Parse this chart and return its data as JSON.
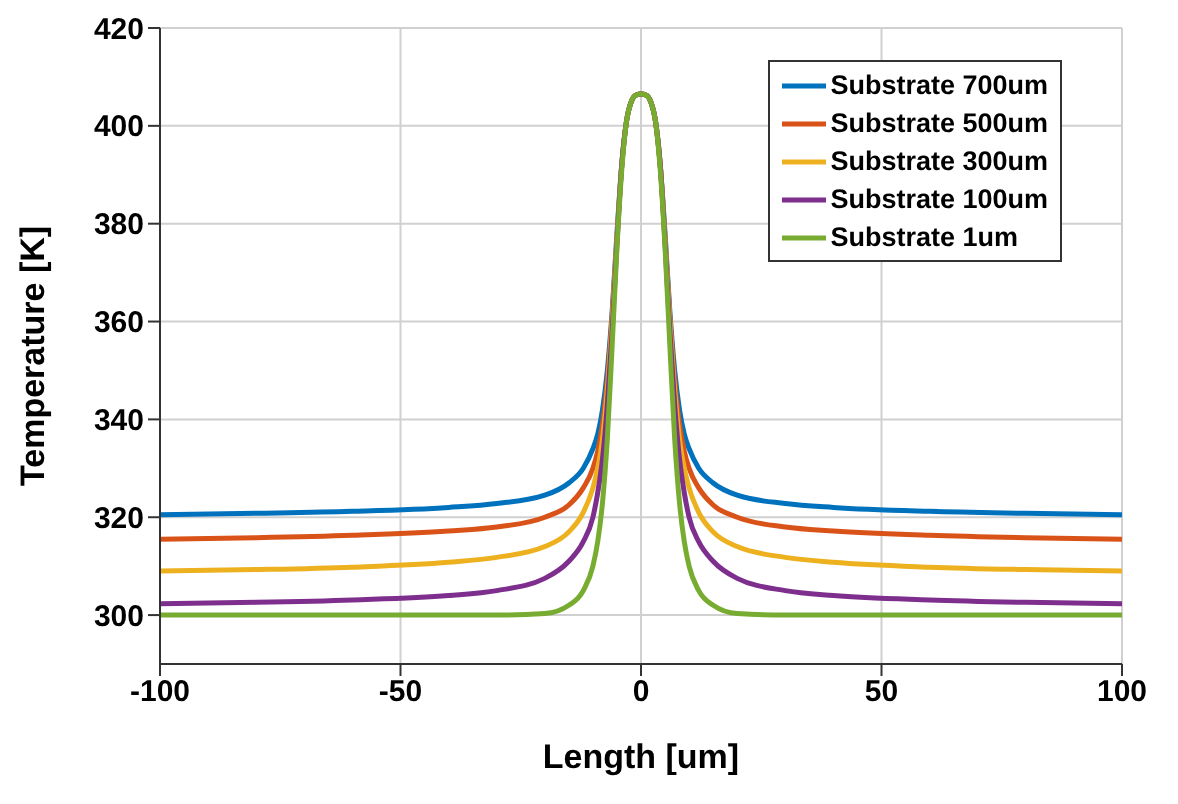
{
  "chart_data": {
    "type": "line",
    "xlabel": "Length [um]",
    "ylabel": "Temperature [K]",
    "x": [
      -100,
      -80,
      -60,
      -40,
      -30,
      -20,
      -15,
      -12,
      -10,
      -9,
      -8,
      -7,
      -6,
      -5,
      -4,
      -3,
      -2,
      -1,
      0,
      1,
      2,
      3,
      4,
      5,
      6,
      7,
      8,
      9,
      10,
      12,
      15,
      20,
      30,
      40,
      60,
      80,
      100
    ],
    "series": [
      {
        "name": "Substrate 700um",
        "color": "#0072bd",
        "values": [
          320.5,
          320.8,
          321.2,
          322,
          322.8,
          324.5,
          327,
          330,
          334,
          337,
          342,
          350,
          362,
          378,
          392,
          401,
          405,
          406.3,
          406.5,
          406.3,
          405,
          401,
          392,
          378,
          362,
          350,
          342,
          337,
          334,
          330,
          327,
          324.5,
          322.8,
          322,
          321.2,
          320.8,
          320.5
        ]
      },
      {
        "name": "Substrate 500um",
        "color": "#d95319",
        "values": [
          315.5,
          315.8,
          316.3,
          317.2,
          318,
          320,
          322.5,
          326,
          330,
          333.5,
          339,
          348,
          361,
          377,
          392,
          401,
          405,
          406.3,
          406.5,
          406.3,
          405,
          401,
          392,
          377,
          361,
          348,
          339,
          333.5,
          330,
          326,
          322.5,
          320,
          318,
          317.2,
          316.3,
          315.8,
          315.5
        ]
      },
      {
        "name": "Substrate 300um",
        "color": "#edb120",
        "values": [
          309,
          309.3,
          309.8,
          310.8,
          311.8,
          314,
          317,
          321,
          326,
          330,
          336,
          346,
          360,
          377,
          392,
          401,
          405,
          406.3,
          406.5,
          406.3,
          405,
          401,
          392,
          377,
          360,
          346,
          336,
          330,
          326,
          321,
          317,
          314,
          311.8,
          310.8,
          309.8,
          309.3,
          309
        ]
      },
      {
        "name": "Substrate 100um",
        "color": "#7e2f8e",
        "values": [
          302.3,
          302.6,
          303.1,
          304,
          305,
          307.5,
          311,
          315,
          320,
          325,
          332,
          343,
          358,
          376,
          392,
          401,
          405,
          406.3,
          406.5,
          406.3,
          405,
          401,
          392,
          376,
          358,
          343,
          332,
          325,
          320,
          315,
          311,
          307.5,
          305,
          304,
          303.1,
          302.6,
          302.3
        ]
      },
      {
        "name": "Substrate 1um",
        "color": "#77ac30",
        "values": [
          300,
          300,
          300,
          300,
          300,
          300.3,
          302,
          305,
          310,
          315,
          323,
          336,
          355,
          375,
          391,
          401,
          405,
          406.3,
          406.5,
          406.3,
          405,
          401,
          391,
          375,
          355,
          336,
          323,
          315,
          310,
          305,
          302,
          300.3,
          300,
          300,
          300,
          300,
          300
        ]
      }
    ],
    "xlim": [
      -100,
      100
    ],
    "xticks": [
      -100,
      -50,
      0,
      50,
      100
    ],
    "ylim": [
      290,
      420
    ],
    "yticks": [
      300,
      320,
      340,
      360,
      380,
      400,
      420
    ],
    "grid": true,
    "legend": "top right",
    "marker": "none",
    "line_style": "solid"
  }
}
